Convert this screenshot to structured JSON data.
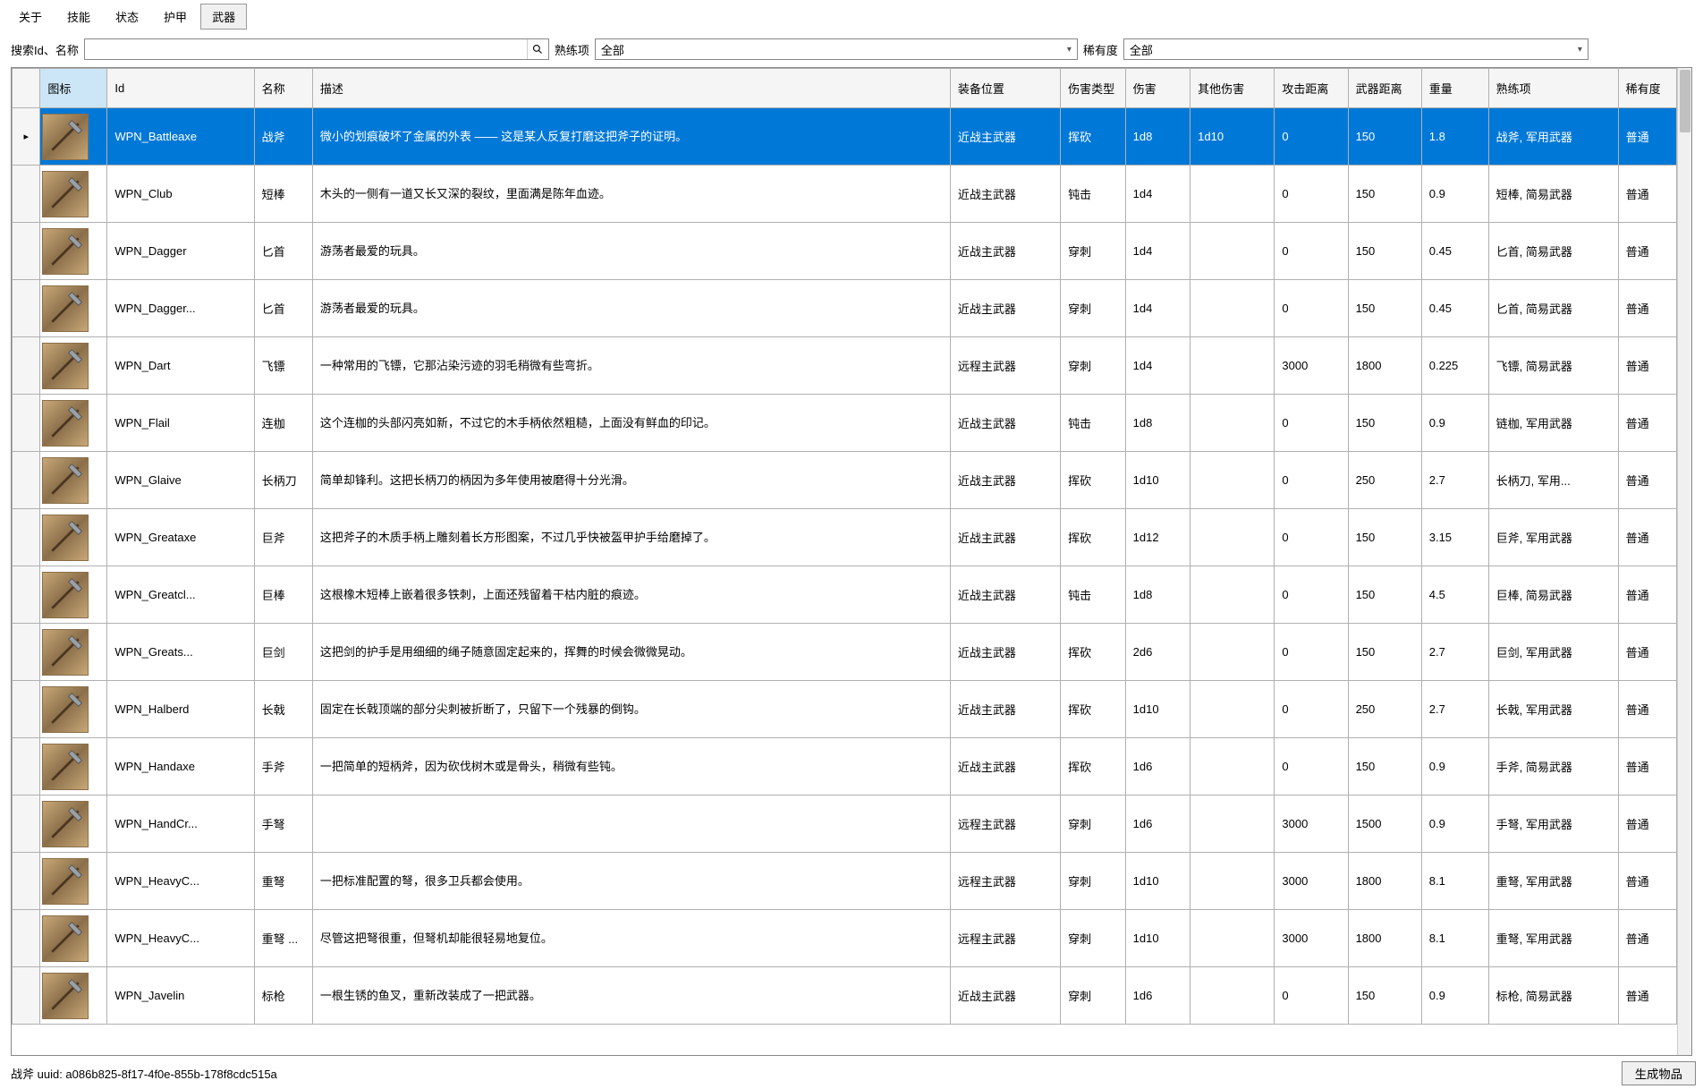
{
  "tabs": [
    "关于",
    "技能",
    "状态",
    "护甲",
    "武器"
  ],
  "active_tab": 4,
  "filter": {
    "search_label": "搜索Id、名称",
    "prof_label": "熟练项",
    "prof_value": "全部",
    "rarity_label": "稀有度",
    "rarity_value": "全部"
  },
  "columns": [
    "",
    "图标",
    "Id",
    "名称",
    "描述",
    "装备位置",
    "伤害类型",
    "伤害",
    "其他伤害",
    "攻击距离",
    "武器距离",
    "重量",
    "熟练项",
    "稀有度"
  ],
  "rows": [
    {
      "marker": "▸",
      "id": "WPN_Battleaxe",
      "name": "战斧",
      "desc": "微小的划痕破坏了金属的外表 —— 这是某人反复打磨这把斧子的证明。",
      "slot": "近战主武器",
      "dmgtype": "挥砍",
      "dmg": "1d8",
      "ext": "1d10",
      "atk": "0",
      "wr": "150",
      "wt": "1.8",
      "prof": "战斧, 军用武器",
      "rar": "普通",
      "sel": true
    },
    {
      "id": "WPN_Club",
      "name": "短棒",
      "desc": "木头的一侧有一道又长又深的裂纹，里面满是陈年血迹。",
      "slot": "近战主武器",
      "dmgtype": "钝击",
      "dmg": "1d4",
      "ext": "",
      "atk": "0",
      "wr": "150",
      "wt": "0.9",
      "prof": "短棒, 简易武器",
      "rar": "普通"
    },
    {
      "id": "WPN_Dagger",
      "name": "匕首",
      "desc": "游荡者最爱的玩具。",
      "slot": "近战主武器",
      "dmgtype": "穿刺",
      "dmg": "1d4",
      "ext": "",
      "atk": "0",
      "wr": "150",
      "wt": "0.45",
      "prof": "匕首, 简易武器",
      "rar": "普通"
    },
    {
      "id": "WPN_Dagger...",
      "name": "匕首",
      "desc": "游荡者最爱的玩具。",
      "slot": "近战主武器",
      "dmgtype": "穿刺",
      "dmg": "1d4",
      "ext": "",
      "atk": "0",
      "wr": "150",
      "wt": "0.45",
      "prof": "匕首, 简易武器",
      "rar": "普通"
    },
    {
      "id": "WPN_Dart",
      "name": "飞镖",
      "desc": "一种常用的飞镖，它那沾染污迹的羽毛稍微有些弯折。",
      "slot": "远程主武器",
      "dmgtype": "穿刺",
      "dmg": "1d4",
      "ext": "",
      "atk": "3000",
      "wr": "1800",
      "wt": "0.225",
      "prof": "飞镖, 简易武器",
      "rar": "普通"
    },
    {
      "id": "WPN_Flail",
      "name": "连枷",
      "desc": "这个连枷的头部闪亮如新，不过它的木手柄依然粗糙，上面没有鲜血的印记。",
      "slot": "近战主武器",
      "dmgtype": "钝击",
      "dmg": "1d8",
      "ext": "",
      "atk": "0",
      "wr": "150",
      "wt": "0.9",
      "prof": "链枷, 军用武器",
      "rar": "普通"
    },
    {
      "id": "WPN_Glaive",
      "name": "长柄刀",
      "desc": "简单却锋利。这把长柄刀的柄因为多年使用被磨得十分光滑。",
      "slot": "近战主武器",
      "dmgtype": "挥砍",
      "dmg": "1d10",
      "ext": "",
      "atk": "0",
      "wr": "250",
      "wt": "2.7",
      "prof": "长柄刀, 军用...",
      "rar": "普通"
    },
    {
      "id": "WPN_Greataxe",
      "name": "巨斧",
      "desc": "这把斧子的木质手柄上雕刻着长方形图案，不过几乎快被盔甲护手给磨掉了。",
      "slot": "近战主武器",
      "dmgtype": "挥砍",
      "dmg": "1d12",
      "ext": "",
      "atk": "0",
      "wr": "150",
      "wt": "3.15",
      "prof": "巨斧, 军用武器",
      "rar": "普通"
    },
    {
      "id": "WPN_Greatcl...",
      "name": "巨棒",
      "desc": "这根橡木短棒上嵌着很多铁刺，上面还残留着干枯内脏的痕迹。",
      "slot": "近战主武器",
      "dmgtype": "钝击",
      "dmg": "1d8",
      "ext": "",
      "atk": "0",
      "wr": "150",
      "wt": "4.5",
      "prof": "巨棒, 简易武器",
      "rar": "普通"
    },
    {
      "id": "WPN_Greats...",
      "name": "巨剑",
      "desc": "这把剑的护手是用细细的绳子随意固定起来的，挥舞的时候会微微晃动。",
      "slot": "近战主武器",
      "dmgtype": "挥砍",
      "dmg": "2d6",
      "ext": "",
      "atk": "0",
      "wr": "150",
      "wt": "2.7",
      "prof": "巨剑, 军用武器",
      "rar": "普通"
    },
    {
      "id": "WPN_Halberd",
      "name": "长戟",
      "desc": "固定在长戟顶端的部分尖刺被折断了，只留下一个残暴的倒钩。",
      "slot": "近战主武器",
      "dmgtype": "挥砍",
      "dmg": "1d10",
      "ext": "",
      "atk": "0",
      "wr": "250",
      "wt": "2.7",
      "prof": "长戟, 军用武器",
      "rar": "普通"
    },
    {
      "id": "WPN_Handaxe",
      "name": "手斧",
      "desc": "一把简单的短柄斧，因为砍伐树木或是骨头，稍微有些钝。",
      "slot": "近战主武器",
      "dmgtype": "挥砍",
      "dmg": "1d6",
      "ext": "",
      "atk": "0",
      "wr": "150",
      "wt": "0.9",
      "prof": "手斧, 简易武器",
      "rar": "普通"
    },
    {
      "id": "WPN_HandCr...",
      "name": "手弩",
      "desc": "",
      "slot": "远程主武器",
      "dmgtype": "穿刺",
      "dmg": "1d6",
      "ext": "",
      "atk": "3000",
      "wr": "1500",
      "wt": "0.9",
      "prof": "手弩, 军用武器",
      "rar": "普通"
    },
    {
      "id": "WPN_HeavyC...",
      "name": "重弩",
      "desc": "一把标准配置的弩，很多卫兵都会使用。",
      "slot": "远程主武器",
      "dmgtype": "穿刺",
      "dmg": "1d10",
      "ext": "",
      "atk": "3000",
      "wr": "1800",
      "wt": "8.1",
      "prof": "重弩, 军用武器",
      "rar": "普通"
    },
    {
      "id": "WPN_HeavyC...",
      "name": "重弩 ...",
      "desc": "尽管这把弩很重，但弩机却能很轻易地复位。",
      "slot": "远程主武器",
      "dmgtype": "穿刺",
      "dmg": "1d10",
      "ext": "",
      "atk": "3000",
      "wr": "1800",
      "wt": "8.1",
      "prof": "重弩, 军用武器",
      "rar": "普通"
    },
    {
      "id": "WPN_Javelin",
      "name": "标枪",
      "desc": "一根生锈的鱼叉，重新改装成了一把武器。",
      "slot": "近战主武器",
      "dmgtype": "穿刺",
      "dmg": "1d6",
      "ext": "",
      "atk": "0",
      "wr": "150",
      "wt": "0.9",
      "prof": "标枪, 简易武器",
      "rar": "普通"
    }
  ],
  "status_text": "战斧 uuid: a086b825-8f17-4f0e-855b-178f8cdc515a",
  "gen_button": "生成物品"
}
